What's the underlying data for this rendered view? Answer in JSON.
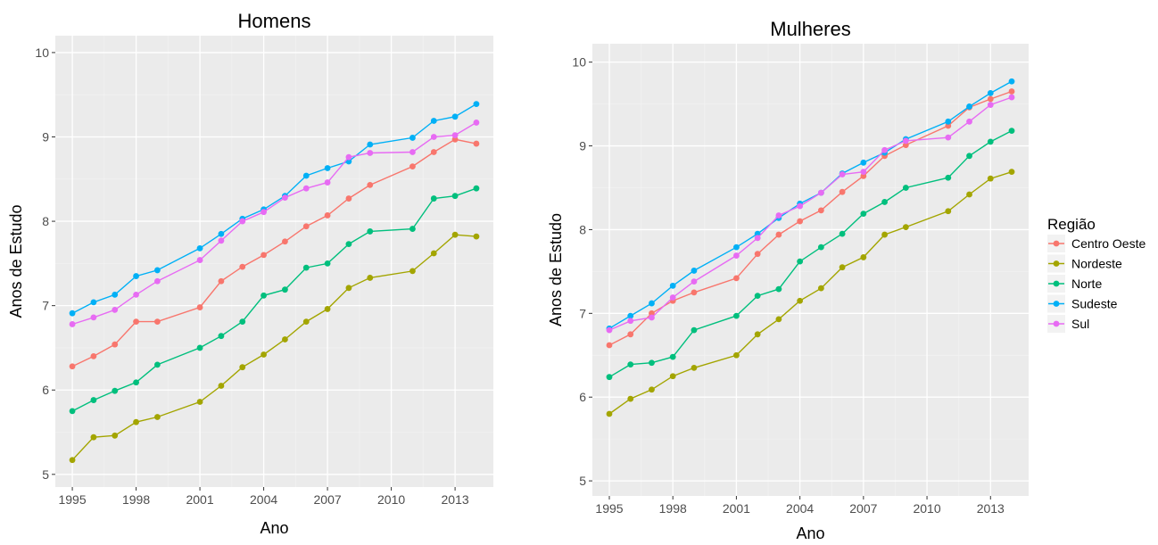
{
  "chart_data": [
    {
      "type": "line",
      "title": "Homens",
      "xlabel": "Ano",
      "ylabel": "Anos de Estudo",
      "xlim": [
        1994.2,
        2014.8
      ],
      "ylim": [
        4.85,
        10.2
      ],
      "x_ticks": [
        1995,
        1998,
        2001,
        2004,
        2007,
        2010,
        2013
      ],
      "x_tick_labels": [
        "1995",
        "1998",
        "2001",
        "2004",
        "2007",
        "2010",
        "2013"
      ],
      "y_ticks": [
        5,
        6,
        7,
        8,
        9,
        10
      ],
      "y_tick_labels": [
        "5",
        "6",
        "7",
        "8",
        "9",
        "10"
      ],
      "grid": true,
      "series": [
        {
          "name": "Centro Oeste",
          "color": "#F8766D",
          "x": [
            1995,
            1996,
            1997,
            1998,
            1999,
            2001,
            2002,
            2003,
            2004,
            2005,
            2006,
            2007,
            2008,
            2009,
            2011,
            2012,
            2013,
            2014
          ],
          "y": [
            6.28,
            6.4,
            6.54,
            6.81,
            6.81,
            6.98,
            7.29,
            7.46,
            7.6,
            7.76,
            7.94,
            8.07,
            8.27,
            8.43,
            8.65,
            8.82,
            8.97,
            8.92
          ]
        },
        {
          "name": "Nordeste",
          "color": "#A3A500",
          "x": [
            1995,
            1996,
            1997,
            1998,
            1999,
            2001,
            2002,
            2003,
            2004,
            2005,
            2006,
            2007,
            2008,
            2009,
            2011,
            2012,
            2013,
            2014
          ],
          "y": [
            5.17,
            5.44,
            5.46,
            5.62,
            5.68,
            5.86,
            6.05,
            6.27,
            6.42,
            6.6,
            6.81,
            6.96,
            7.21,
            7.33,
            7.41,
            7.62,
            7.84,
            7.82
          ]
        },
        {
          "name": "Norte",
          "color": "#00BF7D",
          "x": [
            1995,
            1996,
            1997,
            1998,
            1999,
            2001,
            2002,
            2003,
            2004,
            2005,
            2006,
            2007,
            2008,
            2009,
            2011,
            2012,
            2013,
            2014
          ],
          "y": [
            5.75,
            5.88,
            5.99,
            6.09,
            6.3,
            6.5,
            6.64,
            6.81,
            7.12,
            7.19,
            7.45,
            7.5,
            7.73,
            7.88,
            7.91,
            8.27,
            8.3,
            8.39
          ]
        },
        {
          "name": "Sudeste",
          "color": "#00B0F6",
          "x": [
            1995,
            1996,
            1997,
            1998,
            1999,
            2001,
            2002,
            2003,
            2004,
            2005,
            2006,
            2007,
            2008,
            2009,
            2011,
            2012,
            2013,
            2014
          ],
          "y": [
            6.91,
            7.04,
            7.13,
            7.35,
            7.42,
            7.68,
            7.85,
            8.03,
            8.14,
            8.3,
            8.54,
            8.63,
            8.71,
            8.91,
            8.99,
            9.19,
            9.24,
            9.39
          ]
        },
        {
          "name": "Sul",
          "color": "#E76BF3",
          "x": [
            1995,
            1996,
            1997,
            1998,
            1999,
            2001,
            2002,
            2003,
            2004,
            2005,
            2006,
            2007,
            2008,
            2009,
            2011,
            2012,
            2013,
            2014
          ],
          "y": [
            6.78,
            6.86,
            6.95,
            7.13,
            7.29,
            7.54,
            7.77,
            8.0,
            8.11,
            8.28,
            8.39,
            8.46,
            8.76,
            8.81,
            8.82,
            9.0,
            9.02,
            9.17
          ]
        }
      ]
    },
    {
      "type": "line",
      "title": "Mulheres",
      "xlabel": "Ano",
      "ylabel": "Anos de Estudo",
      "xlim": [
        1994.2,
        2014.8
      ],
      "ylim": [
        4.82,
        10.22
      ],
      "x_ticks": [
        1995,
        1998,
        2001,
        2004,
        2007,
        2010,
        2013
      ],
      "x_tick_labels": [
        "1995",
        "1998",
        "2001",
        "2004",
        "2007",
        "2010",
        "2013"
      ],
      "y_ticks": [
        5,
        6,
        7,
        8,
        9,
        10
      ],
      "y_tick_labels": [
        "5",
        "6",
        "7",
        "8",
        "9",
        "10"
      ],
      "grid": true,
      "series": [
        {
          "name": "Centro Oeste",
          "color": "#F8766D",
          "x": [
            1995,
            1996,
            1997,
            1998,
            1999,
            2001,
            2002,
            2003,
            2004,
            2005,
            2006,
            2007,
            2008,
            2009,
            2011,
            2012,
            2013,
            2014
          ],
          "y": [
            6.62,
            6.75,
            7.0,
            7.15,
            7.25,
            7.42,
            7.71,
            7.94,
            8.1,
            8.23,
            8.45,
            8.64,
            8.88,
            9.01,
            9.24,
            9.46,
            9.56,
            9.65
          ]
        },
        {
          "name": "Nordeste",
          "color": "#A3A500",
          "x": [
            1995,
            1996,
            1997,
            1998,
            1999,
            2001,
            2002,
            2003,
            2004,
            2005,
            2006,
            2007,
            2008,
            2009,
            2011,
            2012,
            2013,
            2014
          ],
          "y": [
            5.8,
            5.98,
            6.09,
            6.25,
            6.35,
            6.5,
            6.75,
            6.93,
            7.15,
            7.3,
            7.55,
            7.67,
            7.94,
            8.03,
            8.22,
            8.42,
            8.61,
            8.69
          ]
        },
        {
          "name": "Norte",
          "color": "#00BF7D",
          "x": [
            1995,
            1996,
            1997,
            1998,
            1999,
            2001,
            2002,
            2003,
            2004,
            2005,
            2006,
            2007,
            2008,
            2009,
            2011,
            2012,
            2013,
            2014
          ],
          "y": [
            6.24,
            6.39,
            6.41,
            6.48,
            6.8,
            6.97,
            7.21,
            7.29,
            7.62,
            7.79,
            7.95,
            8.19,
            8.33,
            8.5,
            8.62,
            8.88,
            9.05,
            9.18
          ]
        },
        {
          "name": "Sudeste",
          "color": "#00B0F6",
          "x": [
            1995,
            1996,
            1997,
            1998,
            1999,
            2001,
            2002,
            2003,
            2004,
            2005,
            2006,
            2007,
            2008,
            2009,
            2011,
            2012,
            2013,
            2014
          ],
          "y": [
            6.82,
            6.97,
            7.12,
            7.33,
            7.51,
            7.79,
            7.95,
            8.14,
            8.31,
            8.44,
            8.67,
            8.8,
            8.92,
            9.08,
            9.29,
            9.47,
            9.63,
            9.77
          ]
        },
        {
          "name": "Sul",
          "color": "#E76BF3",
          "x": [
            1995,
            1996,
            1997,
            1998,
            1999,
            2001,
            2002,
            2003,
            2004,
            2005,
            2006,
            2007,
            2008,
            2009,
            2011,
            2012,
            2013,
            2014
          ],
          "y": [
            6.8,
            6.91,
            6.95,
            7.19,
            7.38,
            7.69,
            7.9,
            8.17,
            8.28,
            8.44,
            8.66,
            8.69,
            8.95,
            9.06,
            9.1,
            9.29,
            9.49,
            9.58
          ]
        }
      ]
    }
  ],
  "legend": {
    "title": "Região",
    "placement": "right",
    "items": [
      {
        "name": "Centro Oeste",
        "color": "#F8766D"
      },
      {
        "name": "Nordeste",
        "color": "#A3A500"
      },
      {
        "name": "Norte",
        "color": "#00BF7D"
      },
      {
        "name": "Sudeste",
        "color": "#00B0F6"
      },
      {
        "name": "Sul",
        "color": "#E76BF3"
      }
    ]
  },
  "theme": {
    "panel_background": "#EBEBEB",
    "grid_major": "#FFFFFF",
    "grid_minor": "#F2F2F2",
    "tick_color": "#333333"
  }
}
